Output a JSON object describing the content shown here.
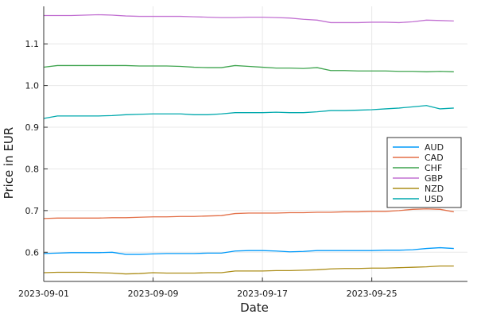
{
  "chart_data": {
    "type": "line",
    "title": "",
    "xlabel": "Date",
    "ylabel": "Price in EUR",
    "xlim": [
      "2023-09-01",
      "2023-10-02"
    ],
    "ylim": [
      0.53,
      1.19
    ],
    "x_ticks": [
      "2023-09-01",
      "2023-09-09",
      "2023-09-17",
      "2023-09-25"
    ],
    "y_ticks": [
      "0.6",
      "0.7",
      "0.8",
      "0.9",
      "1.0",
      "1.1"
    ],
    "grid": true,
    "legend_position": "right",
    "series": [
      {
        "name": "AUD",
        "color": "#009AFA",
        "points": [
          [
            "2023-09-01",
            0.597
          ],
          [
            "2023-09-02",
            0.598
          ],
          [
            "2023-09-03",
            0.599
          ],
          [
            "2023-09-04",
            0.599
          ],
          [
            "2023-09-05",
            0.599
          ],
          [
            "2023-09-06",
            0.6
          ],
          [
            "2023-09-07",
            0.595
          ],
          [
            "2023-09-08",
            0.595
          ],
          [
            "2023-09-09",
            0.596
          ],
          [
            "2023-09-10",
            0.597
          ],
          [
            "2023-09-11",
            0.597
          ],
          [
            "2023-09-12",
            0.597
          ],
          [
            "2023-09-13",
            0.598
          ],
          [
            "2023-09-14",
            0.598
          ],
          [
            "2023-09-15",
            0.603
          ],
          [
            "2023-09-16",
            0.604
          ],
          [
            "2023-09-17",
            0.604
          ],
          [
            "2023-09-18",
            0.603
          ],
          [
            "2023-09-19",
            0.601
          ],
          [
            "2023-09-20",
            0.602
          ],
          [
            "2023-09-21",
            0.604
          ],
          [
            "2023-09-22",
            0.604
          ],
          [
            "2023-09-23",
            0.604
          ],
          [
            "2023-09-24",
            0.604
          ],
          [
            "2023-09-25",
            0.604
          ],
          [
            "2023-09-26",
            0.605
          ],
          [
            "2023-09-27",
            0.605
          ],
          [
            "2023-09-28",
            0.606
          ],
          [
            "2023-09-29",
            0.609
          ],
          [
            "2023-09-30",
            0.611
          ],
          [
            "2023-10-01",
            0.609
          ]
        ]
      },
      {
        "name": "CAD",
        "color": "#E36F47",
        "points": [
          [
            "2023-09-01",
            0.681
          ],
          [
            "2023-09-02",
            0.682
          ],
          [
            "2023-09-03",
            0.682
          ],
          [
            "2023-09-04",
            0.682
          ],
          [
            "2023-09-05",
            0.682
          ],
          [
            "2023-09-06",
            0.683
          ],
          [
            "2023-09-07",
            0.683
          ],
          [
            "2023-09-08",
            0.684
          ],
          [
            "2023-09-09",
            0.685
          ],
          [
            "2023-09-10",
            0.685
          ],
          [
            "2023-09-11",
            0.686
          ],
          [
            "2023-09-12",
            0.686
          ],
          [
            "2023-09-13",
            0.687
          ],
          [
            "2023-09-14",
            0.688
          ],
          [
            "2023-09-15",
            0.693
          ],
          [
            "2023-09-16",
            0.694
          ],
          [
            "2023-09-17",
            0.694
          ],
          [
            "2023-09-18",
            0.694
          ],
          [
            "2023-09-19",
            0.695
          ],
          [
            "2023-09-20",
            0.695
          ],
          [
            "2023-09-21",
            0.696
          ],
          [
            "2023-09-22",
            0.696
          ],
          [
            "2023-09-23",
            0.697
          ],
          [
            "2023-09-24",
            0.697
          ],
          [
            "2023-09-25",
            0.698
          ],
          [
            "2023-09-26",
            0.698
          ],
          [
            "2023-09-27",
            0.7
          ],
          [
            "2023-09-28",
            0.703
          ],
          [
            "2023-09-29",
            0.704
          ],
          [
            "2023-09-30",
            0.703
          ],
          [
            "2023-10-01",
            0.697
          ]
        ]
      },
      {
        "name": "CHF",
        "color": "#3EA44E",
        "points": [
          [
            "2023-09-01",
            1.044
          ],
          [
            "2023-09-02",
            1.048
          ],
          [
            "2023-09-03",
            1.048
          ],
          [
            "2023-09-04",
            1.048
          ],
          [
            "2023-09-05",
            1.048
          ],
          [
            "2023-09-06",
            1.048
          ],
          [
            "2023-09-07",
            1.048
          ],
          [
            "2023-09-08",
            1.047
          ],
          [
            "2023-09-09",
            1.047
          ],
          [
            "2023-09-10",
            1.047
          ],
          [
            "2023-09-11",
            1.046
          ],
          [
            "2023-09-12",
            1.044
          ],
          [
            "2023-09-13",
            1.043
          ],
          [
            "2023-09-14",
            1.043
          ],
          [
            "2023-09-15",
            1.048
          ],
          [
            "2023-09-16",
            1.046
          ],
          [
            "2023-09-17",
            1.044
          ],
          [
            "2023-09-18",
            1.042
          ],
          [
            "2023-09-19",
            1.042
          ],
          [
            "2023-09-20",
            1.041
          ],
          [
            "2023-09-21",
            1.043
          ],
          [
            "2023-09-22",
            1.036
          ],
          [
            "2023-09-23",
            1.036
          ],
          [
            "2023-09-24",
            1.035
          ],
          [
            "2023-09-25",
            1.035
          ],
          [
            "2023-09-26",
            1.035
          ],
          [
            "2023-09-27",
            1.034
          ],
          [
            "2023-09-28",
            1.034
          ],
          [
            "2023-09-29",
            1.033
          ],
          [
            "2023-09-30",
            1.034
          ],
          [
            "2023-10-01",
            1.033
          ]
        ]
      },
      {
        "name": "GBP",
        "color": "#C271D2",
        "points": [
          [
            "2023-09-01",
            1.168
          ],
          [
            "2023-09-02",
            1.168
          ],
          [
            "2023-09-03",
            1.168
          ],
          [
            "2023-09-04",
            1.169
          ],
          [
            "2023-09-05",
            1.17
          ],
          [
            "2023-09-06",
            1.169
          ],
          [
            "2023-09-07",
            1.167
          ],
          [
            "2023-09-08",
            1.166
          ],
          [
            "2023-09-09",
            1.166
          ],
          [
            "2023-09-10",
            1.166
          ],
          [
            "2023-09-11",
            1.166
          ],
          [
            "2023-09-12",
            1.165
          ],
          [
            "2023-09-13",
            1.164
          ],
          [
            "2023-09-14",
            1.163
          ],
          [
            "2023-09-15",
            1.163
          ],
          [
            "2023-09-16",
            1.164
          ],
          [
            "2023-09-17",
            1.164
          ],
          [
            "2023-09-18",
            1.163
          ],
          [
            "2023-09-19",
            1.162
          ],
          [
            "2023-09-20",
            1.159
          ],
          [
            "2023-09-21",
            1.157
          ],
          [
            "2023-09-22",
            1.151
          ],
          [
            "2023-09-23",
            1.151
          ],
          [
            "2023-09-24",
            1.151
          ],
          [
            "2023-09-25",
            1.152
          ],
          [
            "2023-09-26",
            1.152
          ],
          [
            "2023-09-27",
            1.151
          ],
          [
            "2023-09-28",
            1.153
          ],
          [
            "2023-09-29",
            1.157
          ],
          [
            "2023-09-30",
            1.156
          ],
          [
            "2023-10-01",
            1.155
          ]
        ]
      },
      {
        "name": "NZD",
        "color": "#AC8D18",
        "points": [
          [
            "2023-09-01",
            0.551
          ],
          [
            "2023-09-02",
            0.552
          ],
          [
            "2023-09-03",
            0.552
          ],
          [
            "2023-09-04",
            0.552
          ],
          [
            "2023-09-05",
            0.551
          ],
          [
            "2023-09-06",
            0.55
          ],
          [
            "2023-09-07",
            0.548
          ],
          [
            "2023-09-08",
            0.549
          ],
          [
            "2023-09-09",
            0.551
          ],
          [
            "2023-09-10",
            0.55
          ],
          [
            "2023-09-11",
            0.55
          ],
          [
            "2023-09-12",
            0.55
          ],
          [
            "2023-09-13",
            0.551
          ],
          [
            "2023-09-14",
            0.551
          ],
          [
            "2023-09-15",
            0.555
          ],
          [
            "2023-09-16",
            0.555
          ],
          [
            "2023-09-17",
            0.555
          ],
          [
            "2023-09-18",
            0.556
          ],
          [
            "2023-09-19",
            0.556
          ],
          [
            "2023-09-20",
            0.557
          ],
          [
            "2023-09-21",
            0.558
          ],
          [
            "2023-09-22",
            0.56
          ],
          [
            "2023-09-23",
            0.561
          ],
          [
            "2023-09-24",
            0.561
          ],
          [
            "2023-09-25",
            0.562
          ],
          [
            "2023-09-26",
            0.562
          ],
          [
            "2023-09-27",
            0.563
          ],
          [
            "2023-09-28",
            0.564
          ],
          [
            "2023-09-29",
            0.565
          ],
          [
            "2023-09-30",
            0.567
          ],
          [
            "2023-10-01",
            0.567
          ]
        ]
      },
      {
        "name": "USD",
        "color": "#00A9AD",
        "points": [
          [
            "2023-09-01",
            0.921
          ],
          [
            "2023-09-02",
            0.927
          ],
          [
            "2023-09-03",
            0.927
          ],
          [
            "2023-09-04",
            0.927
          ],
          [
            "2023-09-05",
            0.927
          ],
          [
            "2023-09-06",
            0.928
          ],
          [
            "2023-09-07",
            0.93
          ],
          [
            "2023-09-08",
            0.931
          ],
          [
            "2023-09-09",
            0.932
          ],
          [
            "2023-09-10",
            0.932
          ],
          [
            "2023-09-11",
            0.932
          ],
          [
            "2023-09-12",
            0.93
          ],
          [
            "2023-09-13",
            0.93
          ],
          [
            "2023-09-14",
            0.932
          ],
          [
            "2023-09-15",
            0.935
          ],
          [
            "2023-09-16",
            0.935
          ],
          [
            "2023-09-17",
            0.935
          ],
          [
            "2023-09-18",
            0.936
          ],
          [
            "2023-09-19",
            0.935
          ],
          [
            "2023-09-20",
            0.935
          ],
          [
            "2023-09-21",
            0.937
          ],
          [
            "2023-09-22",
            0.94
          ],
          [
            "2023-09-23",
            0.94
          ],
          [
            "2023-09-24",
            0.941
          ],
          [
            "2023-09-25",
            0.942
          ],
          [
            "2023-09-26",
            0.944
          ],
          [
            "2023-09-27",
            0.946
          ],
          [
            "2023-09-28",
            0.949
          ],
          [
            "2023-09-29",
            0.952
          ],
          [
            "2023-09-30",
            0.944
          ],
          [
            "2023-10-01",
            0.946
          ]
        ]
      }
    ]
  }
}
